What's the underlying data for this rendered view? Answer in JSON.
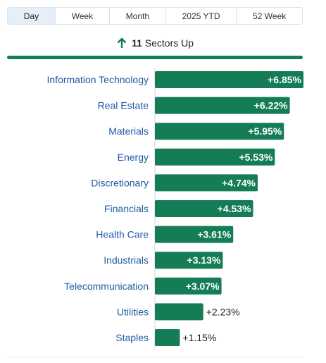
{
  "tabs": [
    {
      "label": "Day",
      "active": true
    },
    {
      "label": "Week",
      "active": false
    },
    {
      "label": "Month",
      "active": false
    },
    {
      "label": "2025 YTD",
      "active": false
    },
    {
      "label": "52 Week",
      "active": false
    }
  ],
  "summary": {
    "count": "11",
    "text": "Sectors Up",
    "icon": "arrow-up-icon"
  },
  "colors": {
    "bar": "#147d56",
    "label": "#1f5aa6",
    "accent": "#147d56"
  },
  "chart_data": {
    "type": "bar",
    "orientation": "horizontal",
    "categories": [
      "Information Technology",
      "Real Estate",
      "Materials",
      "Energy",
      "Discretionary",
      "Financials",
      "Health Care",
      "Industrials",
      "Telecommunication",
      "Utilities",
      "Staples"
    ],
    "values": [
      6.85,
      6.22,
      5.95,
      5.53,
      4.74,
      4.53,
      3.61,
      3.13,
      3.07,
      2.23,
      1.15
    ],
    "value_labels": [
      "+6.85%",
      "+6.22%",
      "+5.95%",
      "+5.53%",
      "+4.74%",
      "+4.53%",
      "+3.61%",
      "+3.13%",
      "+3.07%",
      "+2.23%",
      "+1.15%"
    ],
    "xlim": [
      0,
      6.85
    ],
    "grid": false,
    "title": "",
    "xlabel": "",
    "ylabel": ""
  }
}
